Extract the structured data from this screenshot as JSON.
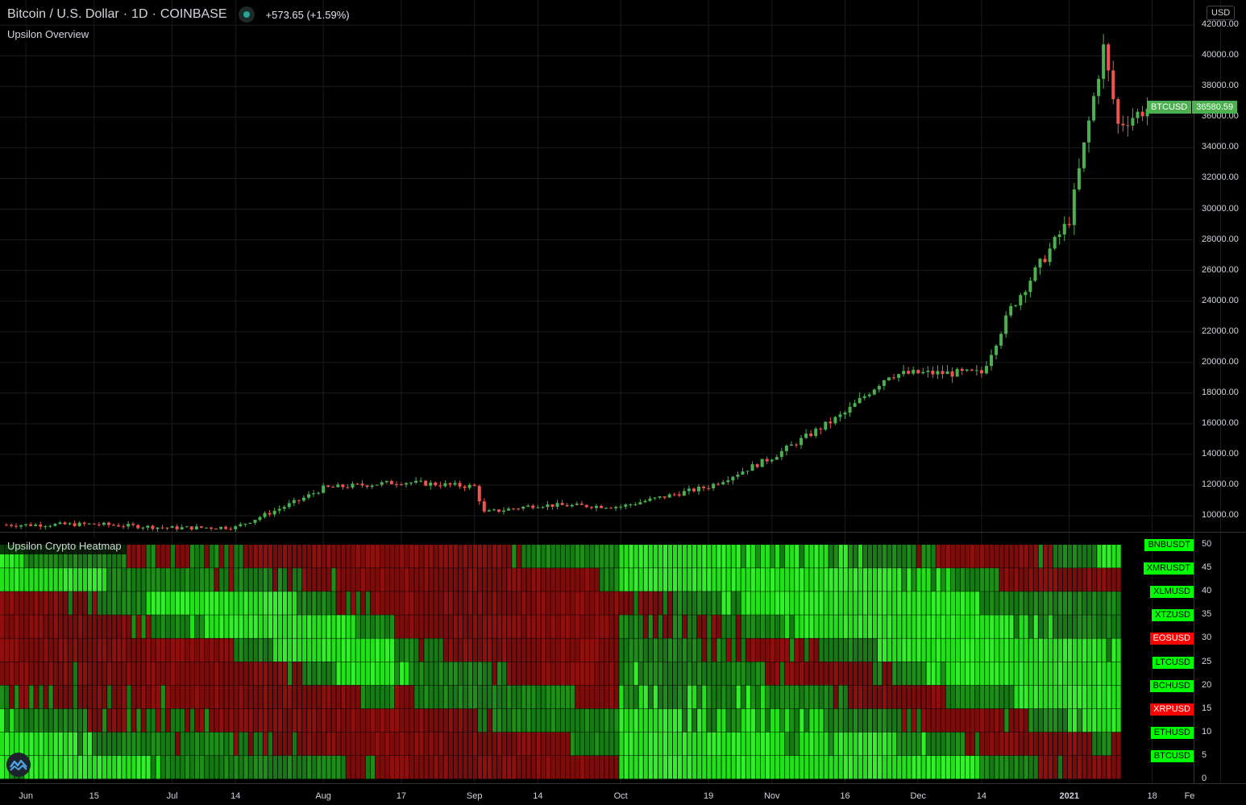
{
  "header": {
    "symbol_title": "Bitcoin / U.S. Dollar",
    "interval": "1D",
    "exchange": "COINBASE",
    "sep": "·",
    "change": "+573.65 (+1.59%)"
  },
  "main_pane": {
    "indicator_label": "Upsilon Overview",
    "currency": "USD",
    "last_price_symbol": "BTCUSD",
    "last_price": "36580.59",
    "price_axis_labels": [
      "42000.00",
      "40000.00",
      "38000.00",
      "36000.00",
      "34000.00",
      "32000.00",
      "30000.00",
      "28000.00",
      "26000.00",
      "24000.00",
      "22000.00",
      "20000.00",
      "18000.00",
      "16000.00",
      "14000.00",
      "12000.00",
      "10000.00"
    ]
  },
  "heatmap_pane": {
    "indicator_label": "Upsilon Crypto Heatmap",
    "scale_labels": [
      "50",
      "45",
      "40",
      "35",
      "30",
      "25",
      "20",
      "15",
      "10",
      "5",
      "0"
    ],
    "assets": [
      {
        "name": "BNBUSDT",
        "status": "up"
      },
      {
        "name": "XMRUSDT",
        "status": "up"
      },
      {
        "name": "XLMUSD",
        "status": "up"
      },
      {
        "name": "XTZUSD",
        "status": "up"
      },
      {
        "name": "EOSUSD",
        "status": "down"
      },
      {
        "name": "LTCUSD",
        "status": "up"
      },
      {
        "name": "BCHUSD",
        "status": "up"
      },
      {
        "name": "XRPUSD",
        "status": "down"
      },
      {
        "name": "ETHUSD",
        "status": "up"
      },
      {
        "name": "BTCUSD",
        "status": "up"
      }
    ]
  },
  "time_axis": [
    {
      "label": "Jun",
      "bold": false
    },
    {
      "label": "15",
      "bold": false
    },
    {
      "label": "Jul",
      "bold": false
    },
    {
      "label": "14",
      "bold": false
    },
    {
      "label": "Aug",
      "bold": false
    },
    {
      "label": "17",
      "bold": false
    },
    {
      "label": "Sep",
      "bold": false
    },
    {
      "label": "14",
      "bold": false
    },
    {
      "label": "Oct",
      "bold": false
    },
    {
      "label": "19",
      "bold": false
    },
    {
      "label": "Nov",
      "bold": false
    },
    {
      "label": "16",
      "bold": false
    },
    {
      "label": "Dec",
      "bold": false
    },
    {
      "label": "14",
      "bold": false
    },
    {
      "label": "2021",
      "bold": true
    },
    {
      "label": "18",
      "bold": false
    },
    {
      "label": "Fe",
      "bold": false
    }
  ],
  "colors": {
    "background": "#000000",
    "grid": "#1c1c1c",
    "up": "#4caf50",
    "down": "#ef5350",
    "heat_green_bright": "#22e01a",
    "heat_green_dark": "#157a13",
    "heat_red": "#7a0c0c",
    "badge_green": "#00ff00",
    "badge_red": "#ff0000",
    "logo": "#4ba3e3"
  },
  "chart_data": {
    "type": "candlestick",
    "symbol": "BTCUSD",
    "ylim": [
      9000,
      42800
    ],
    "series": [
      {
        "date": "2020-06-01",
        "close": 9400
      },
      {
        "date": "2020-06-15",
        "close": 9450
      },
      {
        "date": "2020-07-01",
        "close": 9200
      },
      {
        "date": "2020-07-14",
        "close": 9250
      },
      {
        "date": "2020-07-27",
        "close": 11000
      },
      {
        "date": "2020-08-01",
        "close": 11800
      },
      {
        "date": "2020-08-17",
        "close": 12200
      },
      {
        "date": "2020-09-01",
        "close": 11900
      },
      {
        "date": "2020-09-03",
        "close": 10200
      },
      {
        "date": "2020-09-14",
        "close": 10700
      },
      {
        "date": "2020-10-01",
        "close": 10600
      },
      {
        "date": "2020-10-19",
        "close": 11900
      },
      {
        "date": "2020-11-01",
        "close": 13800
      },
      {
        "date": "2020-11-16",
        "close": 16700
      },
      {
        "date": "2020-11-25",
        "close": 19200
      },
      {
        "date": "2020-12-01",
        "close": 19300
      },
      {
        "date": "2020-12-14",
        "close": 19300
      },
      {
        "date": "2020-12-20",
        "close": 23500
      },
      {
        "date": "2021-01-01",
        "close": 29300
      },
      {
        "date": "2021-01-08",
        "close": 40500
      },
      {
        "date": "2021-01-11",
        "close": 35500
      },
      {
        "date": "2021-01-17",
        "close": 36580.59
      }
    ],
    "heatmap": {
      "rows": [
        "BTCUSD",
        "ETHUSD",
        "XRPUSD",
        "BCHUSD",
        "LTCUSD",
        "EOSUSD",
        "XTZUSD",
        "XLMUSD",
        "XMRUSDT",
        "BNBUSDT"
      ],
      "ylim": [
        0,
        50
      ]
    }
  }
}
